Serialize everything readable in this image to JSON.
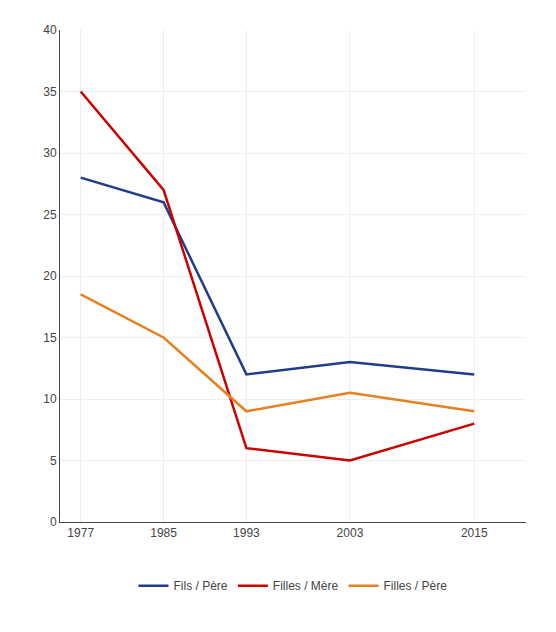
{
  "chart_data": {
    "type": "line",
    "x": [
      1977,
      1985,
      1993,
      2003,
      2015
    ],
    "series": [
      {
        "name": "Fils / Père",
        "color": "#1F3D8A",
        "values": [
          28,
          26,
          12,
          13,
          12
        ]
      },
      {
        "name": "Filles / Mère",
        "color": "#CC0000",
        "values": [
          35,
          27,
          6,
          5,
          8
        ]
      },
      {
        "name": "Filles / Père",
        "color": "#E88020",
        "values": [
          18.5,
          15,
          9,
          10.5,
          9
        ]
      }
    ],
    "xlim": [
      1975,
      2020
    ],
    "xticks": [
      1977,
      1985,
      1993,
      2003,
      2015
    ],
    "ylim": [
      0,
      40
    ],
    "yticks": [
      0,
      5,
      10,
      15,
      20,
      25,
      30,
      35,
      40
    ],
    "grid": true,
    "legend": "bottom"
  }
}
